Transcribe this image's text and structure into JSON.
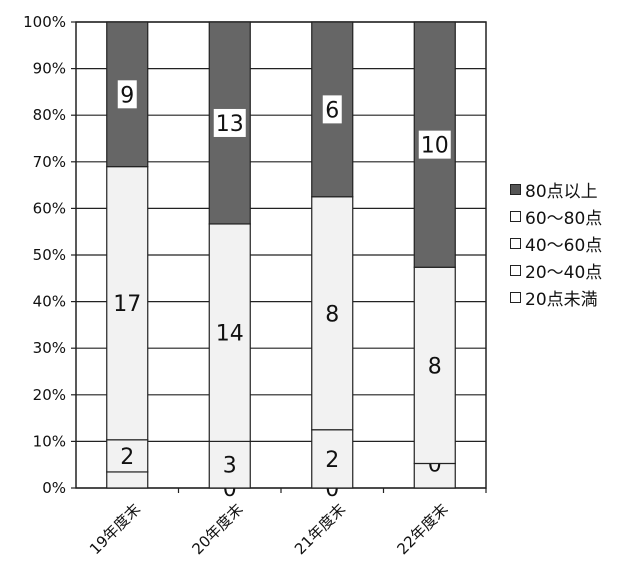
{
  "chart_data": {
    "type": "bar",
    "stacked": true,
    "percent_stacked": true,
    "categories": [
      "19年度末",
      "20年度末",
      "21年度末",
      "22年度末"
    ],
    "series": [
      {
        "name": "20点未満",
        "values": [
          1,
          0,
          0,
          1
        ],
        "color": "#f2f2f2"
      },
      {
        "name": "20～40点",
        "values": [
          2,
          3,
          2,
          0
        ],
        "color": "#f2f2f2"
      },
      {
        "name": "40～60点",
        "values": [
          17,
          14,
          8,
          8
        ],
        "color": "#f2f2f2"
      },
      {
        "name": "60～80点",
        "values": [
          0,
          0,
          0,
          0
        ],
        "color": "#ffffff"
      },
      {
        "name": "80点以上",
        "values": [
          9,
          13,
          6,
          10
        ],
        "color": "#666666"
      }
    ],
    "value_labels": [
      [
        "",
        "2",
        "17",
        "",
        "9"
      ],
      [
        "0",
        "3",
        "14",
        "",
        "13"
      ],
      [
        "0",
        "2",
        "8",
        "",
        "6"
      ],
      [
        "",
        "0",
        "8",
        "",
        "10"
      ]
    ],
    "yticks": [
      "0%",
      "10%",
      "20%",
      "30%",
      "40%",
      "50%",
      "60%",
      "70%",
      "80%",
      "90%",
      "100%"
    ],
    "ylim": [
      0,
      100
    ],
    "grid": true,
    "legend_position": "right",
    "legend": [
      "80点以上",
      "60～80点",
      "40～60点",
      "20～40点",
      "20点未満"
    ]
  }
}
